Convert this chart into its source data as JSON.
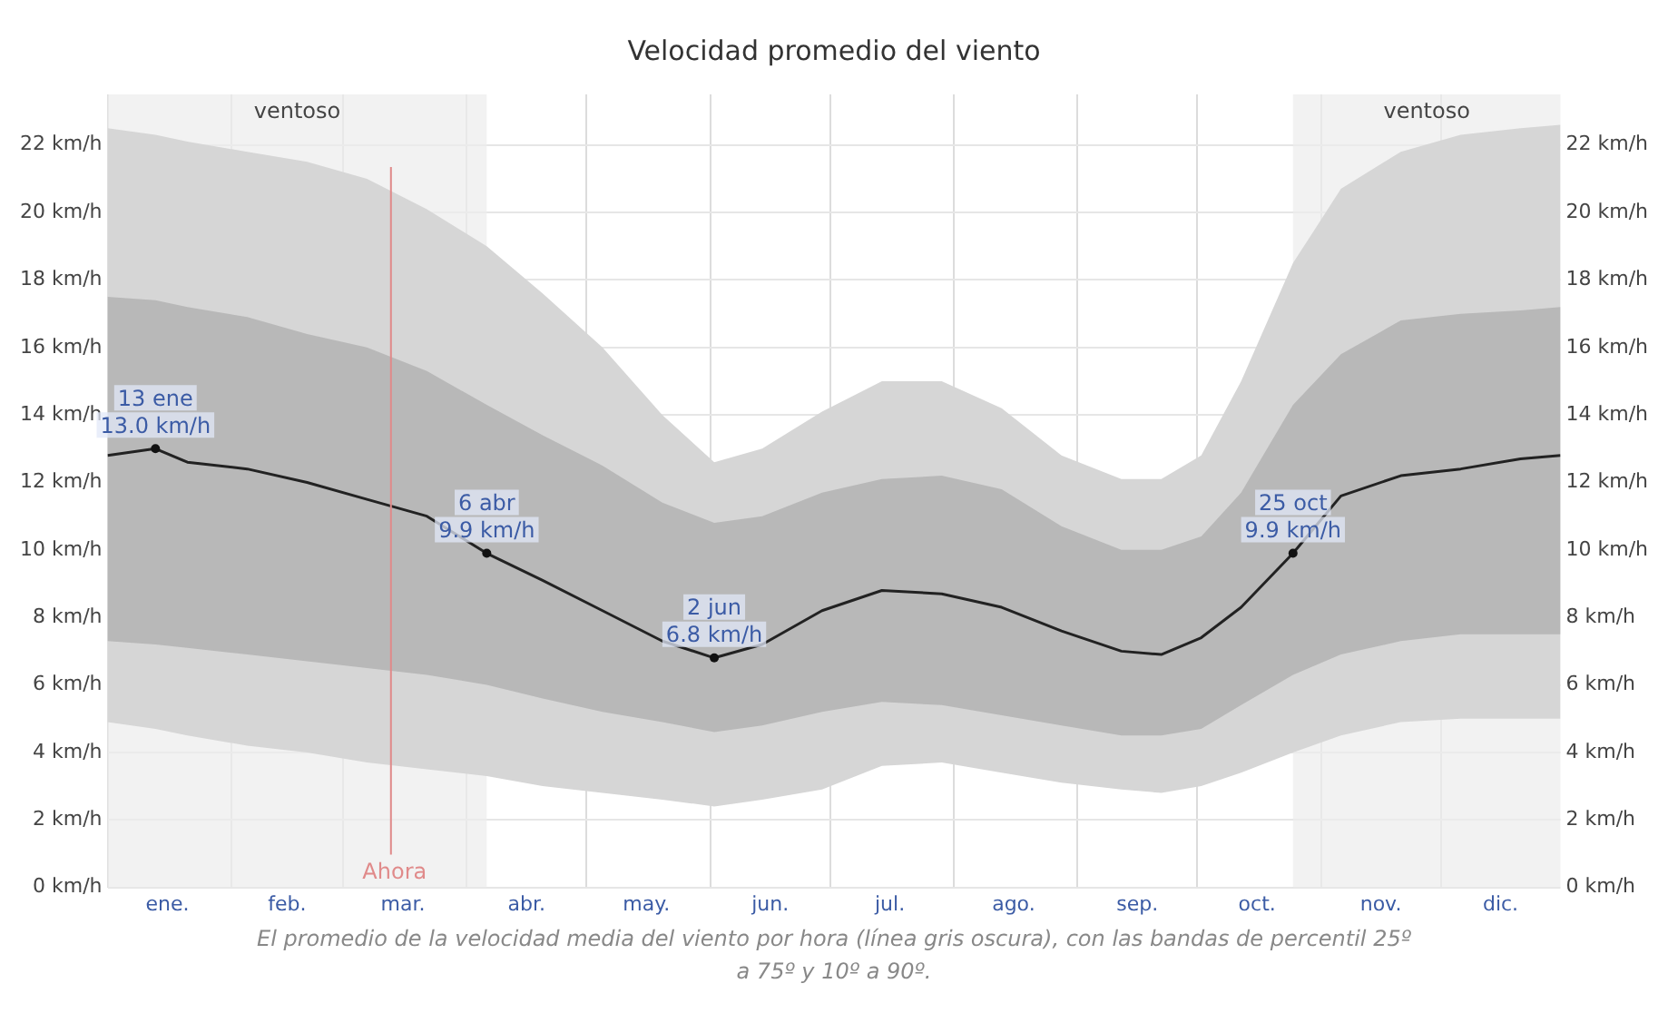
{
  "chart_data": {
    "type": "line",
    "title": "Velocidad promedio del viento",
    "xlim": [
      "--01-01",
      "--12-31"
    ],
    "xticks": [
      {
        "value": "--01-01",
        "label": null
      },
      {
        "value": "--01-16",
        "label": "ene."
      },
      {
        "value": "--02-01",
        "label": null
      },
      {
        "value": "--02-15",
        "label": "feb."
      },
      {
        "value": "--03-01",
        "label": null
      },
      {
        "value": "--03-16",
        "label": "mar."
      },
      {
        "value": "--04-01",
        "label": null
      },
      {
        "value": "--04-16",
        "label": "abr."
      },
      {
        "value": "--05-01",
        "label": null
      },
      {
        "value": "--05-16",
        "label": "may."
      },
      {
        "value": "--06-01",
        "label": null
      },
      {
        "value": "--06-16",
        "label": "jun."
      },
      {
        "value": "--07-01",
        "label": null
      },
      {
        "value": "--07-16",
        "label": "jul."
      },
      {
        "value": "--08-01",
        "label": null
      },
      {
        "value": "--08-16",
        "label": "ago."
      },
      {
        "value": "--09-01",
        "label": null
      },
      {
        "value": "--09-16",
        "label": "sep."
      },
      {
        "value": "--10-01",
        "label": null
      },
      {
        "value": "--10-16",
        "label": "oct."
      },
      {
        "value": "--11-01",
        "label": null
      },
      {
        "value": "--11-16",
        "label": "nov."
      },
      {
        "value": "--12-01",
        "label": null
      },
      {
        "value": "--12-16",
        "label": "dic."
      }
    ],
    "ylim": [
      0,
      23.5
    ],
    "yticks": [
      {
        "value": 0,
        "label": "0 km/h"
      },
      {
        "value": 2,
        "label": "2 km/h"
      },
      {
        "value": 4,
        "label": "4 km/h"
      },
      {
        "value": 6,
        "label": "6 km/h"
      },
      {
        "value": 8,
        "label": "8 km/h"
      },
      {
        "value": 10,
        "label": "10 km/h"
      },
      {
        "value": 12,
        "label": "12 km/h"
      },
      {
        "value": 14,
        "label": "14 km/h"
      },
      {
        "value": 16,
        "label": "16 km/h"
      },
      {
        "value": 18,
        "label": "18 km/h"
      },
      {
        "value": 20,
        "label": "20 km/h"
      },
      {
        "value": 22,
        "label": "22 km/h"
      }
    ],
    "y2lim": [
      0,
      23.5
    ],
    "y2ticks": [
      {
        "value": 0,
        "label": "0 km/h"
      },
      {
        "value": 2,
        "label": "2 km/h"
      },
      {
        "value": 4,
        "label": "4 km/h"
      },
      {
        "value": 6,
        "label": "6 km/h"
      },
      {
        "value": 8,
        "label": "8 km/h"
      },
      {
        "value": 10,
        "label": "10 km/h"
      },
      {
        "value": 12,
        "label": "12 km/h"
      },
      {
        "value": 14,
        "label": "14 km/h"
      },
      {
        "value": 16,
        "label": "16 km/h"
      },
      {
        "value": 18,
        "label": "18 km/h"
      },
      {
        "value": 20,
        "label": "20 km/h"
      },
      {
        "value": 22,
        "label": "22 km/h"
      }
    ],
    "grid": true,
    "legend": false,
    "x": [
      "--01-01",
      "--01-13",
      "--01-21",
      "--02-05",
      "--02-20",
      "--03-07",
      "--03-22",
      "--04-06",
      "--04-20",
      "--05-05",
      "--05-20",
      "--06-02",
      "--06-14",
      "--06-29",
      "--07-14",
      "--07-29",
      "--08-13",
      "--08-28",
      "--09-12",
      "--09-22",
      "--10-02",
      "--10-12",
      "--10-25",
      "--11-06",
      "--11-21",
      "--12-06",
      "--12-21",
      "--12-31"
    ],
    "series": [
      {
        "type": "line",
        "color": "#d6d6d6",
        "values": [
          null,
          null,
          null,
          null,
          null,
          null,
          null,
          null,
          null,
          null,
          null,
          null,
          null,
          null,
          null,
          null,
          null,
          null,
          null,
          null,
          null,
          null,
          null,
          null,
          null,
          null,
          null,
          null
        ],
        "lower": [
          4.9,
          4.7,
          4.5,
          4.2,
          4.0,
          3.7,
          3.5,
          3.3,
          3.0,
          2.8,
          2.6,
          2.4,
          2.6,
          2.9,
          3.6,
          3.7,
          3.4,
          3.1,
          2.9,
          2.8,
          3.0,
          3.4,
          4.0,
          4.5,
          4.9,
          5.0,
          5.0,
          5.0
        ],
        "upper": [
          22.5,
          22.3,
          22.1,
          21.8,
          21.5,
          21.0,
          20.1,
          19.0,
          17.6,
          16.0,
          14.0,
          12.6,
          13.0,
          14.1,
          15.0,
          15.0,
          14.2,
          12.8,
          12.1,
          12.1,
          12.8,
          15.0,
          18.5,
          20.7,
          21.8,
          22.3,
          22.5,
          22.6
        ]
      },
      {
        "type": "line",
        "color": "#b8b8b8",
        "values": [
          null,
          null,
          null,
          null,
          null,
          null,
          null,
          null,
          null,
          null,
          null,
          null,
          null,
          null,
          null,
          null,
          null,
          null,
          null,
          null,
          null,
          null,
          null,
          null,
          null,
          null,
          null,
          null
        ],
        "lower": [
          7.3,
          7.2,
          7.1,
          6.9,
          6.7,
          6.5,
          6.3,
          6.0,
          5.6,
          5.2,
          4.9,
          4.6,
          4.8,
          5.2,
          5.5,
          5.4,
          5.1,
          4.8,
          4.5,
          4.5,
          4.7,
          5.4,
          6.3,
          6.9,
          7.3,
          7.5,
          7.5,
          7.5
        ],
        "upper": [
          17.5,
          17.4,
          17.2,
          16.9,
          16.4,
          16.0,
          15.3,
          14.3,
          13.4,
          12.5,
          11.4,
          10.8,
          11.0,
          11.7,
          12.1,
          12.2,
          11.8,
          10.7,
          10.0,
          10.0,
          10.4,
          11.7,
          14.3,
          15.8,
          16.8,
          17.0,
          17.1,
          17.2
        ]
      },
      {
        "type": "line",
        "color": "#222222",
        "values": [
          12.8,
          13.0,
          12.6,
          12.4,
          12.0,
          11.5,
          11.0,
          9.9,
          9.1,
          8.2,
          7.3,
          6.8,
          7.2,
          8.2,
          8.8,
          8.7,
          8.3,
          7.6,
          7.0,
          6.9,
          7.4,
          8.3,
          9.9,
          11.6,
          12.2,
          12.4,
          12.7,
          12.8
        ]
      }
    ],
    "bands": [
      {
        "axis": "x",
        "from": "--01-01",
        "to": "--04-06",
        "label": "ventoso",
        "color": "#ececec"
      },
      {
        "axis": "x",
        "from": "--10-25",
        "to": "--12-31",
        "label": "ventoso",
        "color": "#ececec"
      }
    ],
    "ref_lines": [
      {
        "axis": "x",
        "value": "--03-13",
        "label": "Ahora",
        "color": "#e08a8a"
      }
    ],
    "annotations": [
      {
        "text": "13 ene\n13.0 km/h",
        "x": "--01-13",
        "y": 13.0
      },
      {
        "text": "6 abr\n9.9 km/h",
        "x": "--04-06",
        "y": 9.9
      },
      {
        "text": "2 jun\n6.8 km/h",
        "x": "--06-02",
        "y": 6.8
      },
      {
        "text": "25 oct\n9.9 km/h",
        "x": "--10-25",
        "y": 9.9
      },
      "El promedio de la velocidad media del viento por hora (línea gris oscura), con las bandas de percentil 25º a 75º y 10º a 90º."
    ]
  }
}
